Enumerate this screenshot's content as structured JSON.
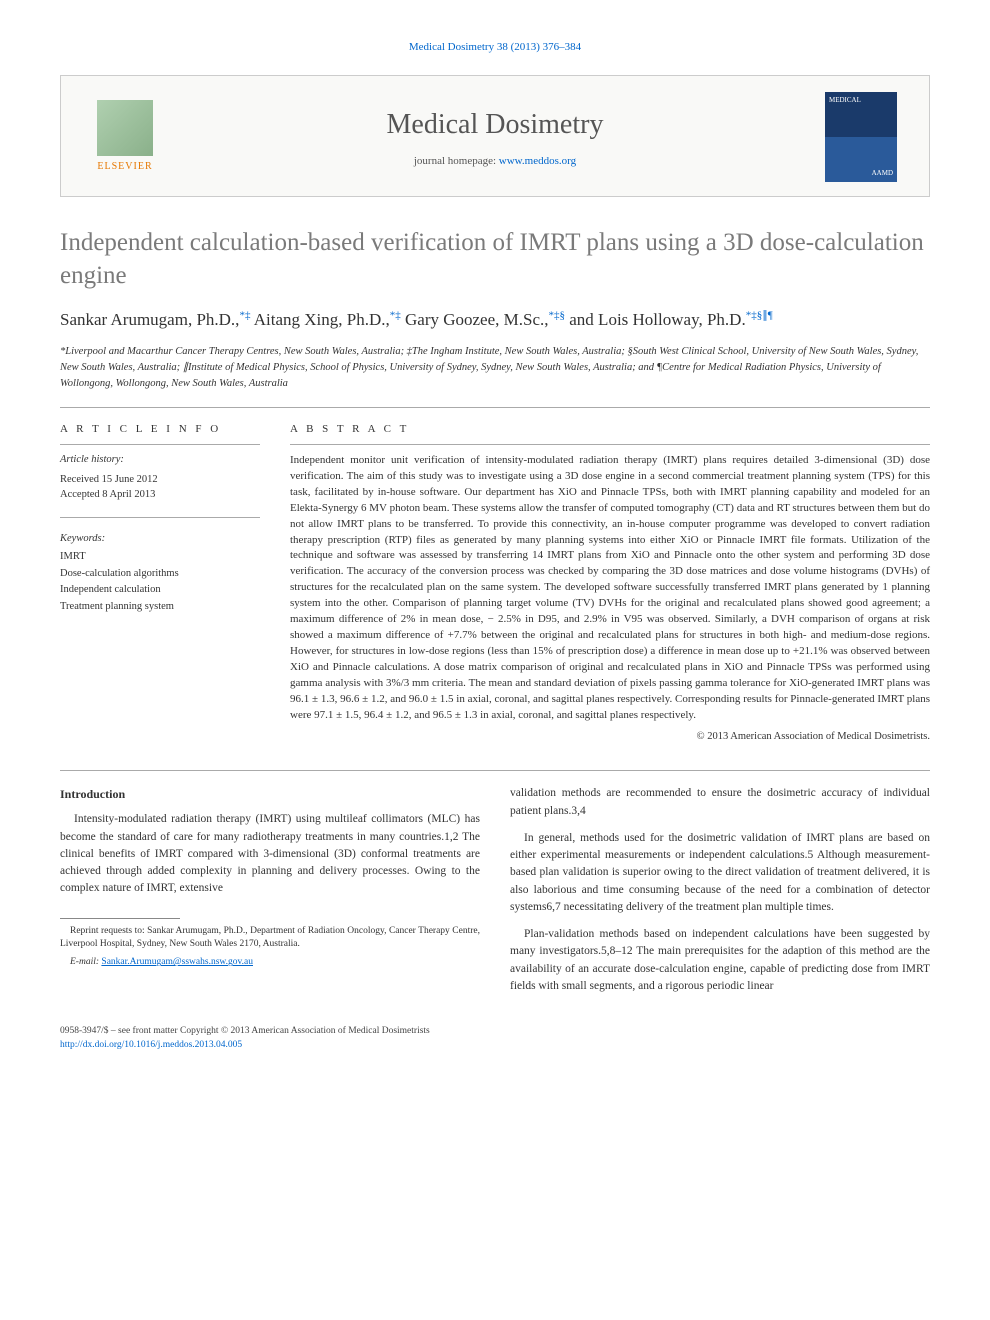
{
  "header": {
    "citation_link": "Medical Dosimetry 38 (2013) 376–384",
    "publisher": "ELSEVIER",
    "journal_title": "Medical Dosimetry",
    "homepage_label": "journal homepage: ",
    "homepage_url": "www.meddos.org"
  },
  "article": {
    "title": "Independent calculation-based verification of IMRT plans using a 3D dose-calculation engine",
    "authors_html": "Sankar Arumugam, Ph.D.,*‡ Aitang Xing, Ph.D.,*‡ Gary Goozee, M.Sc.,*‡§ and Lois Holloway, Ph.D.*‡§∥¶",
    "affiliations": "*Liverpool and Macarthur Cancer Therapy Centres, New South Wales, Australia; ‡The Ingham Institute, New South Wales, Australia; §South West Clinical School, University of New South Wales, Sydney, New South Wales, Australia; ∥Institute of Medical Physics, School of Physics, University of Sydney, Sydney, New South Wales, Australia; and ¶Centre for Medical Radiation Physics, University of Wollongong, Wollongong, New South Wales, Australia"
  },
  "meta": {
    "info_heading": "A R T I C L E  I N F O",
    "history_label": "Article history:",
    "received": "Received 15 June 2012",
    "accepted": "Accepted 8 April 2013",
    "keywords_label": "Keywords:",
    "keywords": [
      "IMRT",
      "Dose-calculation algorithms",
      "Independent calculation",
      "Treatment planning system"
    ]
  },
  "abstract": {
    "heading": "A B S T R A C T",
    "text": "Independent monitor unit verification of intensity-modulated radiation therapy (IMRT) plans requires detailed 3-dimensional (3D) dose verification. The aim of this study was to investigate using a 3D dose engine in a second commercial treatment planning system (TPS) for this task, facilitated by in-house software. Our department has XiO and Pinnacle TPSs, both with IMRT planning capability and modeled for an Elekta-Synergy 6 MV photon beam. These systems allow the transfer of computed tomography (CT) data and RT structures between them but do not allow IMRT plans to be transferred. To provide this connectivity, an in-house computer programme was developed to convert radiation therapy prescription (RTP) files as generated by many planning systems into either XiO or Pinnacle IMRT file formats. Utilization of the technique and software was assessed by transferring 14 IMRT plans from XiO and Pinnacle onto the other system and performing 3D dose verification. The accuracy of the conversion process was checked by comparing the 3D dose matrices and dose volume histograms (DVHs) of structures for the recalculated plan on the same system. The developed software successfully transferred IMRT plans generated by 1 planning system into the other. Comparison of planning target volume (TV) DVHs for the original and recalculated plans showed good agreement; a maximum difference of 2% in mean dose, − 2.5% in D95, and 2.9% in V95 was observed. Similarly, a DVH comparison of organs at risk showed a maximum difference of +7.7% between the original and recalculated plans for structures in both high- and medium-dose regions. However, for structures in low-dose regions (less than 15% of prescription dose) a difference in mean dose up to +21.1% was observed between XiO and Pinnacle calculations. A dose matrix comparison of original and recalculated plans in XiO and Pinnacle TPSs was performed using gamma analysis with 3%/3 mm criteria. The mean and standard deviation of pixels passing gamma tolerance for XiO-generated IMRT plans was 96.1 ± 1.3, 96.6 ± 1.2, and 96.0 ± 1.5 in axial, coronal, and sagittal planes respectively. Corresponding results for Pinnacle-generated IMRT plans were 97.1 ± 1.5, 96.4 ± 1.2, and 96.5 ± 1.3 in axial, coronal, and sagittal planes respectively.",
    "copyright": "© 2013 American Association of Medical Dosimetrists."
  },
  "body": {
    "intro_heading": "Introduction",
    "left_p1": "Intensity-modulated radiation therapy (IMRT) using multileaf collimators (MLC) has become the standard of care for many radiotherapy treatments in many countries.1,2 The clinical benefits of IMRT compared with 3-dimensional (3D) conformal treatments are achieved through added complexity in planning and delivery processes. Owing to the complex nature of IMRT, extensive",
    "right_p1": "validation methods are recommended to ensure the dosimetric accuracy of individual patient plans.3,4",
    "right_p2": "In general, methods used for the dosimetric validation of IMRT plans are based on either experimental measurements or independent calculations.5 Although measurement-based plan validation is superior owing to the direct validation of treatment delivered, it is also laborious and time consuming because of the need for a combination of detector systems6,7 necessitating delivery of the treatment plan multiple times.",
    "right_p3": "Plan-validation methods based on independent calculations have been suggested by many investigators.5,8–12 The main prerequisites for the adaption of this method are the availability of an accurate dose-calculation engine, capable of predicting dose from IMRT fields with small segments, and a rigorous periodic linear"
  },
  "footnote": {
    "reprint": "Reprint requests to: Sankar Arumugam, Ph.D., Department of Radiation Oncology, Cancer Therapy Centre, Liverpool Hospital, Sydney, New South Wales 2170, Australia.",
    "email_label": "E-mail:",
    "email": "Sankar.Arumugam@sswahs.nsw.gov.au"
  },
  "footer": {
    "copyright_line": "0958-3947/$ – see front matter Copyright © 2013 American Association of Medical Dosimetrists",
    "doi": "http://dx.doi.org/10.1016/j.meddos.2013.04.005"
  },
  "colors": {
    "link": "#0066cc",
    "title_gray": "#7a7a7a"
  }
}
